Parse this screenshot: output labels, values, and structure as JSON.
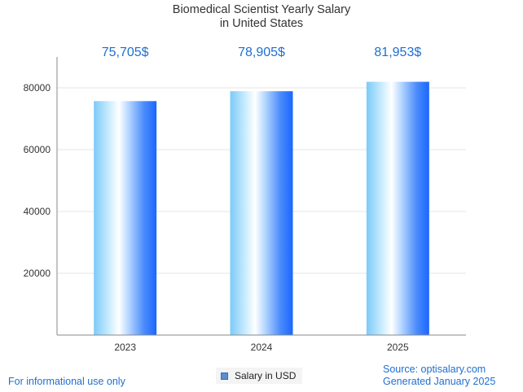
{
  "chart_data": {
    "type": "bar",
    "title": [
      "Biomedical Scientist Yearly Salary",
      "in United States"
    ],
    "categories": [
      "2023",
      "2024",
      "2025"
    ],
    "series": [
      {
        "name": "Salary in USD",
        "values": [
          75705,
          78905,
          81953
        ]
      }
    ],
    "data_labels": [
      "75,705$",
      "78,905$",
      "81,953$"
    ],
    "y_ticks": [
      20000,
      40000,
      60000,
      80000
    ],
    "y_tick_labels": [
      "20000",
      "40000",
      "60000",
      "80000"
    ],
    "ylim": [
      0,
      90000
    ],
    "grid": true,
    "legend_position": "bottom-center",
    "colors": {
      "bar_edge": "#1a66ff",
      "bar_light": "#ffffff",
      "bar_mid": "#86cdf7",
      "label": "#1f6fd0"
    }
  },
  "footer": {
    "left": "For informational use only",
    "source": "Source: optisalary.com",
    "generated": "Generated January 2025"
  }
}
